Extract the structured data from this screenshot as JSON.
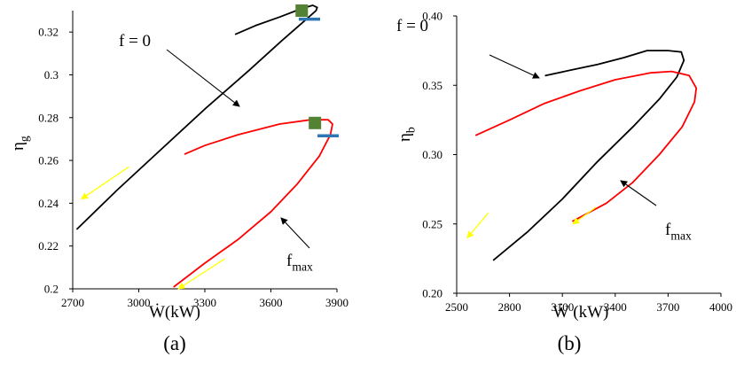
{
  "chart_data": [
    {
      "type": "line",
      "panel_label": "(a)",
      "xlabel": "Ẇ(kW)",
      "ylabel": "η",
      "ylabel_sub": "g",
      "xlim": [
        2700,
        3900
      ],
      "ylim": [
        0.2,
        0.33
      ],
      "xticks": [
        2700,
        3000,
        3300,
        3600,
        3900
      ],
      "xtick_labels": [
        "2700",
        "3000",
        "3300",
        "3600",
        "3900"
      ],
      "yticks": [
        0.2,
        0.22,
        0.24,
        0.26,
        0.28,
        0.3,
        0.32
      ],
      "ytick_labels": [
        "0.2",
        "0.22",
        "0.24",
        "0.26",
        "0.28",
        "0.3",
        "0.32"
      ],
      "series": [
        {
          "color": "#000000",
          "points": [
            [
              2720,
              0.228
            ],
            [
              2900,
              0.246
            ],
            [
              3100,
              0.265
            ],
            [
              3300,
              0.284
            ],
            [
              3500,
              0.302
            ],
            [
              3650,
              0.316
            ],
            [
              3750,
              0.325
            ],
            [
              3805,
              0.33
            ],
            [
              3810,
              0.3315
            ],
            [
              3790,
              0.3325
            ],
            [
              3740,
              0.331
            ],
            [
              3640,
              0.327
            ],
            [
              3530,
              0.323
            ],
            [
              3440,
              0.319
            ]
          ]
        },
        {
          "color": "#ff0000",
          "points": [
            [
              3160,
              0.201
            ],
            [
              3300,
              0.212
            ],
            [
              3450,
              0.223
            ],
            [
              3600,
              0.236
            ],
            [
              3720,
              0.249
            ],
            [
              3820,
              0.262
            ],
            [
              3870,
              0.272
            ],
            [
              3880,
              0.277
            ],
            [
              3860,
              0.279
            ],
            [
              3780,
              0.279
            ],
            [
              3640,
              0.277
            ],
            [
              3450,
              0.272
            ],
            [
              3300,
              0.267
            ],
            [
              3210,
              0.263
            ]
          ]
        }
      ],
      "markers": {
        "squares": [
          {
            "x": 3740,
            "y": 0.33
          },
          {
            "x": 3800,
            "y": 0.2775
          }
        ],
        "dashes": [
          {
            "x": 3775,
            "y": 0.326
          },
          {
            "x": 3860,
            "y": 0.2715
          }
        ]
      },
      "annotations": [
        {
          "text": "f = 0",
          "main": "f = 0",
          "sub": "",
          "at": [
            3300,
            0.28
          ]
        },
        {
          "text": "fmax",
          "main": "f",
          "sub": "max",
          "at": [
            3600,
            0.237
          ]
        }
      ],
      "direction_arrows": [
        {
          "from": [
            2955,
            0.257
          ],
          "to": [
            2740,
            0.242
          ]
        },
        {
          "from": [
            3390,
            0.214
          ],
          "to": [
            3180,
            0.2
          ]
        }
      ]
    },
    {
      "type": "line",
      "panel_label": "(b)",
      "xlabel": "Ẇ (kW)",
      "ylabel": "η",
      "ylabel_sub": "b",
      "xlim": [
        2500,
        4000
      ],
      "ylim": [
        0.2,
        0.4
      ],
      "xticks": [
        2500,
        2800,
        3100,
        3400,
        3700,
        4000
      ],
      "xtick_labels": [
        "2500",
        "2800",
        "3100",
        "3400",
        "3700",
        "4000"
      ],
      "yticks": [
        0.2,
        0.25,
        0.3,
        0.35,
        0.4
      ],
      "ytick_labels": [
        "0.20",
        "0.25",
        "0.30",
        "0.35",
        "0.40"
      ],
      "series": [
        {
          "color": "#000000",
          "points": [
            [
              2710,
              0.224
            ],
            [
              2900,
              0.244
            ],
            [
              3100,
              0.268
            ],
            [
              3300,
              0.295
            ],
            [
              3500,
              0.32
            ],
            [
              3650,
              0.34
            ],
            [
              3750,
              0.356
            ],
            [
              3790,
              0.368
            ],
            [
              3775,
              0.374
            ],
            [
              3700,
              0.375
            ],
            [
              3580,
              0.375
            ],
            [
              3450,
              0.37
            ],
            [
              3300,
              0.365
            ],
            [
              3150,
              0.361
            ],
            [
              3005,
              0.357
            ]
          ]
        },
        {
          "color": "#ff0000",
          "points": [
            [
              2610,
              0.314
            ],
            [
              2800,
              0.325
            ],
            [
              3000,
              0.337
            ],
            [
              3200,
              0.346
            ],
            [
              3400,
              0.354
            ],
            [
              3600,
              0.359
            ],
            [
              3720,
              0.36
            ],
            [
              3820,
              0.357
            ],
            [
              3860,
              0.348
            ],
            [
              3850,
              0.338
            ],
            [
              3780,
              0.32
            ],
            [
              3650,
              0.3
            ],
            [
              3500,
              0.28
            ],
            [
              3350,
              0.265
            ],
            [
              3160,
              0.252
            ]
          ]
        }
      ],
      "markers": {
        "squares": [],
        "dashes": []
      },
      "annotations": [
        {
          "text": "f = 0",
          "main": "f = 0",
          "sub": "",
          "at": [
            2890,
            0.37
          ]
        },
        {
          "text": "fmax",
          "main": "f",
          "sub": "max",
          "at": [
            3550,
            0.268
          ]
        }
      ],
      "direction_arrows": [
        {
          "from": [
            2680,
            0.258
          ],
          "to": [
            2560,
            0.24
          ]
        },
        {
          "from": [
            3290,
            0.262
          ],
          "to": [
            3160,
            0.25
          ]
        }
      ]
    }
  ]
}
